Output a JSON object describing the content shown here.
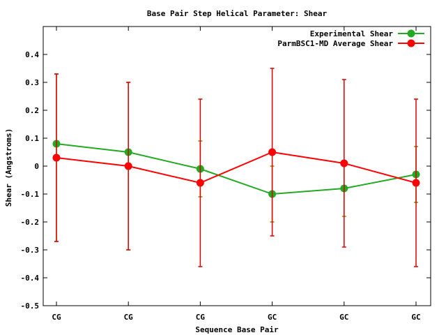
{
  "chart_data": {
    "type": "line",
    "title": "Base Pair Step Helical Parameter: Shear",
    "xlabel": "Sequence Base Pair",
    "ylabel": "Shear (Angstroms)",
    "ylim": [
      -0.5,
      0.5
    ],
    "categories": [
      "CG",
      "CG",
      "CG",
      "GC",
      "GC",
      "GC"
    ],
    "yticks": [
      -0.5,
      -0.4,
      -0.3,
      -0.2,
      -0.1,
      0,
      0.1,
      0.2,
      0.3,
      0.4
    ],
    "ytick_labels": [
      "-0.5",
      "-0.4",
      "-0.3",
      "-0.2",
      "-0.1",
      "0",
      "0.1",
      "0.2",
      "0.3",
      "0.4"
    ],
    "legend_position": "top-right",
    "grid": false,
    "series": [
      {
        "name": "Experimental Shear",
        "color": "#22aa22",
        "errbar_color": "#8b8b00",
        "values": [
          0.08,
          0.05,
          -0.01,
          -0.1,
          -0.08,
          -0.03
        ],
        "err_low": [
          -0.27,
          -0.3,
          -0.11,
          -0.2,
          -0.18,
          -0.13
        ],
        "err_high": [
          0.33,
          0.3,
          0.09,
          0.0,
          0.02,
          0.07
        ]
      },
      {
        "name": "ParmBSC1-MD Average Shear",
        "color": "#ff0000",
        "errbar_color": "#dd0000",
        "values": [
          0.03,
          0.0,
          -0.06,
          0.05,
          0.01,
          -0.06
        ],
        "err_low": [
          -0.27,
          -0.3,
          -0.36,
          -0.25,
          -0.29,
          -0.36
        ],
        "err_high": [
          0.33,
          0.3,
          0.24,
          0.35,
          0.31,
          0.24
        ]
      }
    ]
  }
}
